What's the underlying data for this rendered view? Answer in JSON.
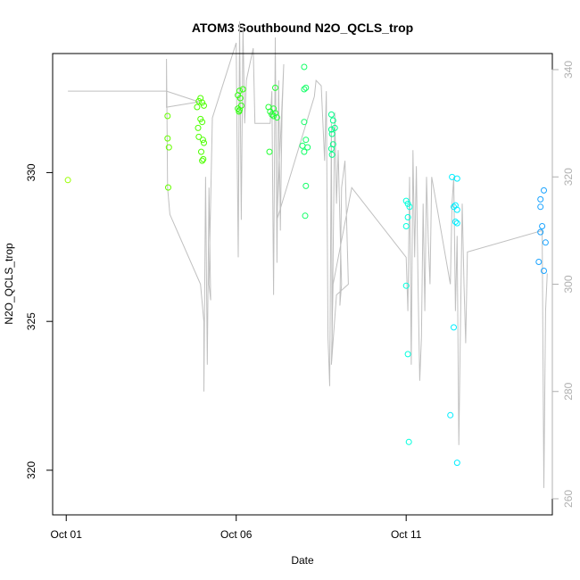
{
  "chart_data": {
    "type": "scatter",
    "title": "ATOM3 Southbound N2O_QCLS_trop",
    "xlabel": "Date",
    "ylabel": "N2O_QCLS_trop",
    "x_unit": "days since Oct 01",
    "x_ticks": [
      {
        "x": 0,
        "label": "Oct 01"
      },
      {
        "x": 5,
        "label": "Oct 06"
      },
      {
        "x": 10,
        "label": "Oct 11"
      }
    ],
    "xlim": [
      -0.4,
      14.3
    ],
    "ylim_left": [
      318.5,
      334.0
    ],
    "y_ticks_left": [
      320,
      325,
      330
    ],
    "ylim_right": [
      257.0,
      343.0
    ],
    "y_ticks_right": [
      260,
      280,
      300,
      320,
      340
    ],
    "right_axis_color": "#b0b0b0",
    "grid": false,
    "color_scale": "time-coded: yellow-green (early) to green to cyan to blue (late)",
    "points": [
      {
        "x": 0.05,
        "y": 329.75,
        "color": "#99ff00"
      },
      {
        "x": 2.98,
        "y": 331.9,
        "color": "#66ff00"
      },
      {
        "x": 2.98,
        "y": 331.15,
        "color": "#66ff00"
      },
      {
        "x": 3.02,
        "y": 330.85,
        "color": "#66ff00"
      },
      {
        "x": 3.0,
        "y": 329.5,
        "color": "#66ff00"
      },
      {
        "x": 3.85,
        "y": 332.2,
        "color": "#4dff00"
      },
      {
        "x": 3.9,
        "y": 332.4,
        "color": "#4dff00"
      },
      {
        "x": 3.95,
        "y": 332.5,
        "color": "#4dff00"
      },
      {
        "x": 4.0,
        "y": 332.35,
        "color": "#4dff00"
      },
      {
        "x": 4.05,
        "y": 332.25,
        "color": "#4dff00"
      },
      {
        "x": 3.95,
        "y": 331.8,
        "color": "#4dff00"
      },
      {
        "x": 4.0,
        "y": 331.7,
        "color": "#4dff00"
      },
      {
        "x": 3.88,
        "y": 331.5,
        "color": "#4dff00"
      },
      {
        "x": 3.9,
        "y": 331.2,
        "color": "#4dff00"
      },
      {
        "x": 4.02,
        "y": 331.1,
        "color": "#4dff00"
      },
      {
        "x": 4.05,
        "y": 331.0,
        "color": "#4dff00"
      },
      {
        "x": 3.97,
        "y": 330.7,
        "color": "#4dff00"
      },
      {
        "x": 4.03,
        "y": 330.45,
        "color": "#4dff00"
      },
      {
        "x": 4.0,
        "y": 330.4,
        "color": "#4dff00"
      },
      {
        "x": 5.05,
        "y": 332.15,
        "color": "#33ff11"
      },
      {
        "x": 5.1,
        "y": 332.1,
        "color": "#33ff11"
      },
      {
        "x": 5.15,
        "y": 332.25,
        "color": "#33ff11"
      },
      {
        "x": 5.05,
        "y": 332.6,
        "color": "#33ff11"
      },
      {
        "x": 5.1,
        "y": 332.75,
        "color": "#33ff11"
      },
      {
        "x": 5.2,
        "y": 332.8,
        "color": "#33ff11"
      },
      {
        "x": 5.12,
        "y": 332.5,
        "color": "#33ff11"
      },
      {
        "x": 5.08,
        "y": 332.05,
        "color": "#33ff11"
      },
      {
        "x": 5.95,
        "y": 332.2,
        "color": "#22ff33"
      },
      {
        "x": 6.0,
        "y": 332.05,
        "color": "#22ff33"
      },
      {
        "x": 6.05,
        "y": 331.95,
        "color": "#22ff33"
      },
      {
        "x": 6.1,
        "y": 332.15,
        "color": "#22ff33"
      },
      {
        "x": 6.15,
        "y": 332.0,
        "color": "#22ff33"
      },
      {
        "x": 6.2,
        "y": 331.85,
        "color": "#22ff33"
      },
      {
        "x": 6.1,
        "y": 331.9,
        "color": "#22ff33"
      },
      {
        "x": 6.15,
        "y": 332.85,
        "color": "#22ff33"
      },
      {
        "x": 5.98,
        "y": 330.7,
        "color": "#22ff33"
      },
      {
        "x": 7.0,
        "y": 333.55,
        "color": "#11ff66"
      },
      {
        "x": 7.0,
        "y": 332.8,
        "color": "#11ff66"
      },
      {
        "x": 7.05,
        "y": 332.85,
        "color": "#11ff66"
      },
      {
        "x": 7.0,
        "y": 331.7,
        "color": "#11ff66"
      },
      {
        "x": 7.05,
        "y": 331.1,
        "color": "#11ff66"
      },
      {
        "x": 6.95,
        "y": 330.9,
        "color": "#11ff66"
      },
      {
        "x": 7.0,
        "y": 330.7,
        "color": "#11ff66"
      },
      {
        "x": 7.1,
        "y": 330.85,
        "color": "#11ff66"
      },
      {
        "x": 7.05,
        "y": 329.55,
        "color": "#11ff66"
      },
      {
        "x": 7.03,
        "y": 328.55,
        "color": "#11ff66"
      },
      {
        "x": 7.8,
        "y": 331.95,
        "color": "#00ff88"
      },
      {
        "x": 7.85,
        "y": 331.75,
        "color": "#00ff88"
      },
      {
        "x": 7.8,
        "y": 331.45,
        "color": "#00ff88"
      },
      {
        "x": 7.82,
        "y": 331.3,
        "color": "#00ff88"
      },
      {
        "x": 7.9,
        "y": 331.5,
        "color": "#00ff88"
      },
      {
        "x": 7.85,
        "y": 330.95,
        "color": "#00ff88"
      },
      {
        "x": 7.8,
        "y": 330.8,
        "color": "#00ff88"
      },
      {
        "x": 7.82,
        "y": 330.6,
        "color": "#00ff88"
      },
      {
        "x": 10.0,
        "y": 329.05,
        "color": "#00ffdd"
      },
      {
        "x": 10.05,
        "y": 328.95,
        "color": "#00ffdd"
      },
      {
        "x": 10.1,
        "y": 328.85,
        "color": "#00ffdd"
      },
      {
        "x": 10.05,
        "y": 328.5,
        "color": "#00ffdd"
      },
      {
        "x": 10.0,
        "y": 328.2,
        "color": "#00ffdd"
      },
      {
        "x": 10.0,
        "y": 326.2,
        "color": "#00ffdd"
      },
      {
        "x": 10.05,
        "y": 323.9,
        "color": "#00ffdd"
      },
      {
        "x": 10.08,
        "y": 320.95,
        "color": "#00ffdd"
      },
      {
        "x": 11.35,
        "y": 329.85,
        "color": "#00eeff"
      },
      {
        "x": 11.5,
        "y": 329.8,
        "color": "#00eeff"
      },
      {
        "x": 11.4,
        "y": 328.85,
        "color": "#00eeff"
      },
      {
        "x": 11.45,
        "y": 328.9,
        "color": "#00eeff"
      },
      {
        "x": 11.5,
        "y": 328.75,
        "color": "#00eeff"
      },
      {
        "x": 11.45,
        "y": 328.35,
        "color": "#00eeff"
      },
      {
        "x": 11.5,
        "y": 328.3,
        "color": "#00eeff"
      },
      {
        "x": 11.4,
        "y": 324.8,
        "color": "#00eeff"
      },
      {
        "x": 11.3,
        "y": 321.85,
        "color": "#00eeff"
      },
      {
        "x": 11.5,
        "y": 320.25,
        "color": "#00eeff"
      },
      {
        "x": 14.05,
        "y": 329.4,
        "color": "#1aa3ff"
      },
      {
        "x": 13.95,
        "y": 329.1,
        "color": "#1aa3ff"
      },
      {
        "x": 13.95,
        "y": 328.85,
        "color": "#1aa3ff"
      },
      {
        "x": 14.0,
        "y": 328.2,
        "color": "#1aa3ff"
      },
      {
        "x": 13.95,
        "y": 328.0,
        "color": "#1aa3ff"
      },
      {
        "x": 14.1,
        "y": 327.65,
        "color": "#1aa3ff"
      },
      {
        "x": 13.9,
        "y": 327.0,
        "color": "#1aa3ff"
      },
      {
        "x": 14.05,
        "y": 326.7,
        "color": "#1aa3ff"
      }
    ],
    "secondary_series": {
      "axis": "right",
      "style": "line",
      "color": "#c0c0c0",
      "note": "flight-track line on right axis",
      "points": [
        [
          0.05,
          336
        ],
        [
          2.95,
          336
        ],
        [
          3.9,
          334
        ],
        [
          2.95,
          333
        ],
        [
          2.95,
          342
        ],
        [
          2.98,
          318
        ],
        [
          3.05,
          313
        ],
        [
          3.95,
          300
        ],
        [
          4.05,
          293
        ],
        [
          4.05,
          280
        ],
        [
          4.1,
          320
        ],
        [
          4.15,
          285
        ],
        [
          4.2,
          318
        ],
        [
          4.25,
          297
        ],
        [
          4.2,
          300
        ],
        [
          4.3,
          331
        ],
        [
          5.0,
          345
        ],
        [
          5.02,
          330
        ],
        [
          5.06,
          305
        ],
        [
          5.1,
          349
        ],
        [
          5.15,
          312
        ],
        [
          5.2,
          348
        ],
        [
          5.25,
          330
        ],
        [
          5.3,
          338
        ],
        [
          5.5,
          344
        ],
        [
          5.55,
          330
        ],
        [
          6.0,
          330
        ],
        [
          6.05,
          336
        ],
        [
          6.1,
          298
        ],
        [
          6.15,
          346
        ],
        [
          6.2,
          304
        ],
        [
          6.25,
          338
        ],
        [
          6.3,
          310
        ],
        [
          6.35,
          332
        ],
        [
          6.4,
          341
        ],
        [
          6.2,
          312
        ],
        [
          7.3,
          335
        ],
        [
          7.35,
          338
        ],
        [
          7.5,
          337
        ],
        [
          7.6,
          323
        ],
        [
          7.65,
          336
        ],
        [
          7.7,
          290
        ],
        [
          7.75,
          281
        ],
        [
          7.8,
          330
        ],
        [
          7.82,
          288
        ],
        [
          7.9,
          332
        ],
        [
          7.95,
          315
        ],
        [
          8.0,
          325
        ],
        [
          8.05,
          312
        ],
        [
          8.1,
          300
        ],
        [
          8.05,
          296
        ],
        [
          8.1,
          318
        ],
        [
          8.2,
          323
        ],
        [
          8.3,
          300
        ],
        [
          7.95,
          298
        ],
        [
          7.8,
          285
        ],
        [
          7.85,
          300
        ],
        [
          8.4,
          318
        ],
        [
          10.0,
          305
        ],
        [
          10.05,
          295
        ],
        [
          10.1,
          320
        ],
        [
          10.15,
          285
        ],
        [
          10.2,
          325
        ],
        [
          10.25,
          305
        ],
        [
          10.3,
          322
        ],
        [
          10.35,
          300
        ],
        [
          10.4,
          282
        ],
        [
          10.45,
          290
        ],
        [
          10.5,
          315
        ],
        [
          10.55,
          295
        ],
        [
          10.6,
          320
        ],
        [
          10.65,
          308
        ],
        [
          10.7,
          300
        ],
        [
          10.75,
          320
        ],
        [
          11.3,
          300
        ],
        [
          11.35,
          315
        ],
        [
          11.4,
          320
        ],
        [
          11.45,
          295
        ],
        [
          11.5,
          309
        ],
        [
          11.55,
          270
        ],
        [
          11.6,
          293
        ],
        [
          11.65,
          315
        ],
        [
          11.7,
          300
        ],
        [
          11.75,
          289
        ],
        [
          11.8,
          306
        ],
        [
          14.0,
          310
        ],
        [
          14.05,
          262
        ],
        [
          14.1,
          295
        ],
        [
          14.15,
          302
        ]
      ]
    }
  }
}
